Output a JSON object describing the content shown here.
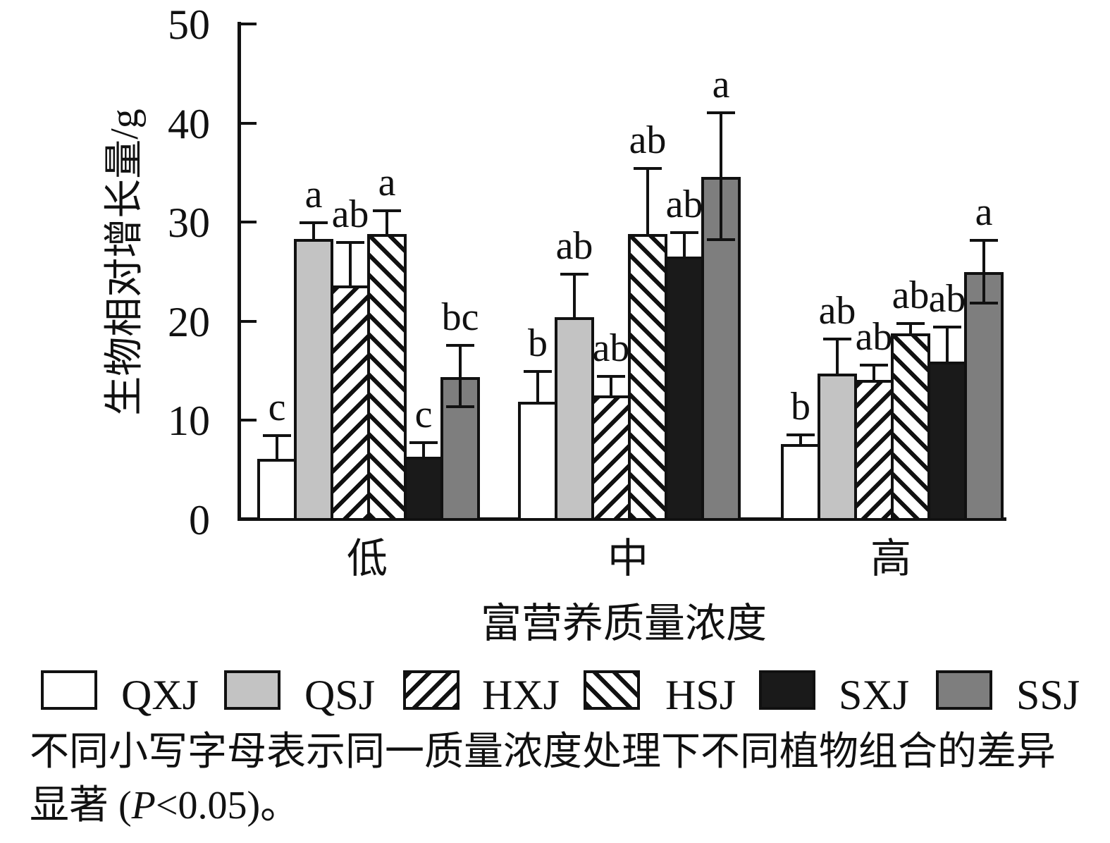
{
  "figure": {
    "caption": {
      "line1": "不同小写字母表示同一质量浓度处理下不同植物组合的差异",
      "line2_segments": [
        "显著 (",
        "P",
        "<0.05)。"
      ]
    }
  },
  "chart_data": {
    "type": "bar",
    "title": "",
    "ylabel": "生物相对增长量/g",
    "xlabel": "富营养质量浓度",
    "ylim": [
      0,
      50
    ],
    "yticks": [
      0,
      10,
      20,
      30,
      40,
      50
    ],
    "ytick_labels": [
      "0",
      "10",
      "20",
      "30",
      "40",
      "50"
    ],
    "grid": false,
    "legend_position": "bottom",
    "categories": [
      "低",
      "中",
      "高"
    ],
    "series": [
      {
        "name": "QXJ",
        "pattern": "solid",
        "fill": "#ffffff",
        "values": [
          6.1,
          11.9,
          7.6
        ],
        "err_hi": [
          8.3,
          14.8,
          8.4
        ],
        "sig_letters": [
          "c",
          "b",
          "b"
        ]
      },
      {
        "name": "QSJ",
        "pattern": "solid",
        "fill": "#c3c3c3",
        "values": [
          28.3,
          20.4,
          14.7
        ],
        "err_hi": [
          29.8,
          24.6,
          18.1
        ],
        "sig_letters": [
          "a",
          "ab",
          "ab"
        ]
      },
      {
        "name": "HXJ",
        "pattern": "diag-up",
        "fill": "#ffffff",
        "values": [
          23.6,
          12.5,
          14.1
        ],
        "err_hi": [
          27.8,
          14.3,
          15.4
        ],
        "sig_letters": [
          "ab",
          "ab",
          "ab"
        ]
      },
      {
        "name": "HSJ",
        "pattern": "diag-down",
        "fill": "#ffffff",
        "values": [
          28.8,
          28.8,
          18.8
        ],
        "err_hi": [
          31.0,
          35.3,
          19.6
        ],
        "sig_letters": [
          "a",
          "ab",
          "ab"
        ]
      },
      {
        "name": "SXJ",
        "pattern": "solid",
        "fill": "#1a1a1a",
        "values": [
          6.3,
          26.5,
          15.9
        ],
        "err_hi": [
          7.6,
          28.8,
          19.3
        ],
        "sig_letters": [
          "c",
          "ab",
          "ab"
        ]
      },
      {
        "name": "SSJ",
        "pattern": "solid",
        "fill": "#7e7e7e",
        "values": [
          14.4,
          34.6,
          25.0
        ],
        "err_hi": [
          17.4,
          40.9,
          28.0
        ],
        "err_lo": [
          11.5,
          28.4,
          22.0
        ],
        "sig_letters": [
          "bc",
          "a",
          "a"
        ]
      }
    ],
    "significance_note": "不同小写字母表示同一质量浓度处理下不同植物组合的差异显著 (P<0.05)。"
  }
}
